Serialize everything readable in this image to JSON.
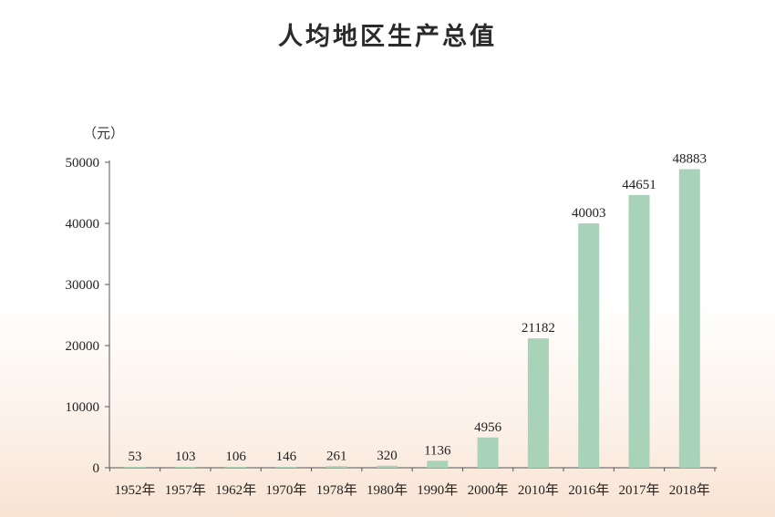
{
  "chart_data": {
    "type": "bar",
    "title": "人均地区生产总值",
    "ylabel": "（元）",
    "xlabel": "",
    "categories": [
      "1952年",
      "1957年",
      "1962年",
      "1970年",
      "1978年",
      "1980年",
      "1990年",
      "2000年",
      "2010年",
      "2016年",
      "2017年",
      "2018年"
    ],
    "values": [
      53,
      103,
      106,
      146,
      261,
      320,
      1136,
      4956,
      21182,
      40003,
      44651,
      48883
    ],
    "value_labels": [
      "53",
      "103",
      "106",
      "146",
      "261",
      "320",
      "1136",
      "4956",
      "21182",
      "40003",
      "44651",
      "48883"
    ],
    "yticks": [
      0,
      10000,
      20000,
      30000,
      40000,
      50000
    ],
    "ytick_labels": [
      "0",
      "10000",
      "20000",
      "30000",
      "40000",
      "50000"
    ],
    "ylim": [
      0,
      50000
    ],
    "grid": false,
    "legend": "none",
    "colors": {
      "bar": "#a9d3b9",
      "axis": "#555555"
    }
  }
}
